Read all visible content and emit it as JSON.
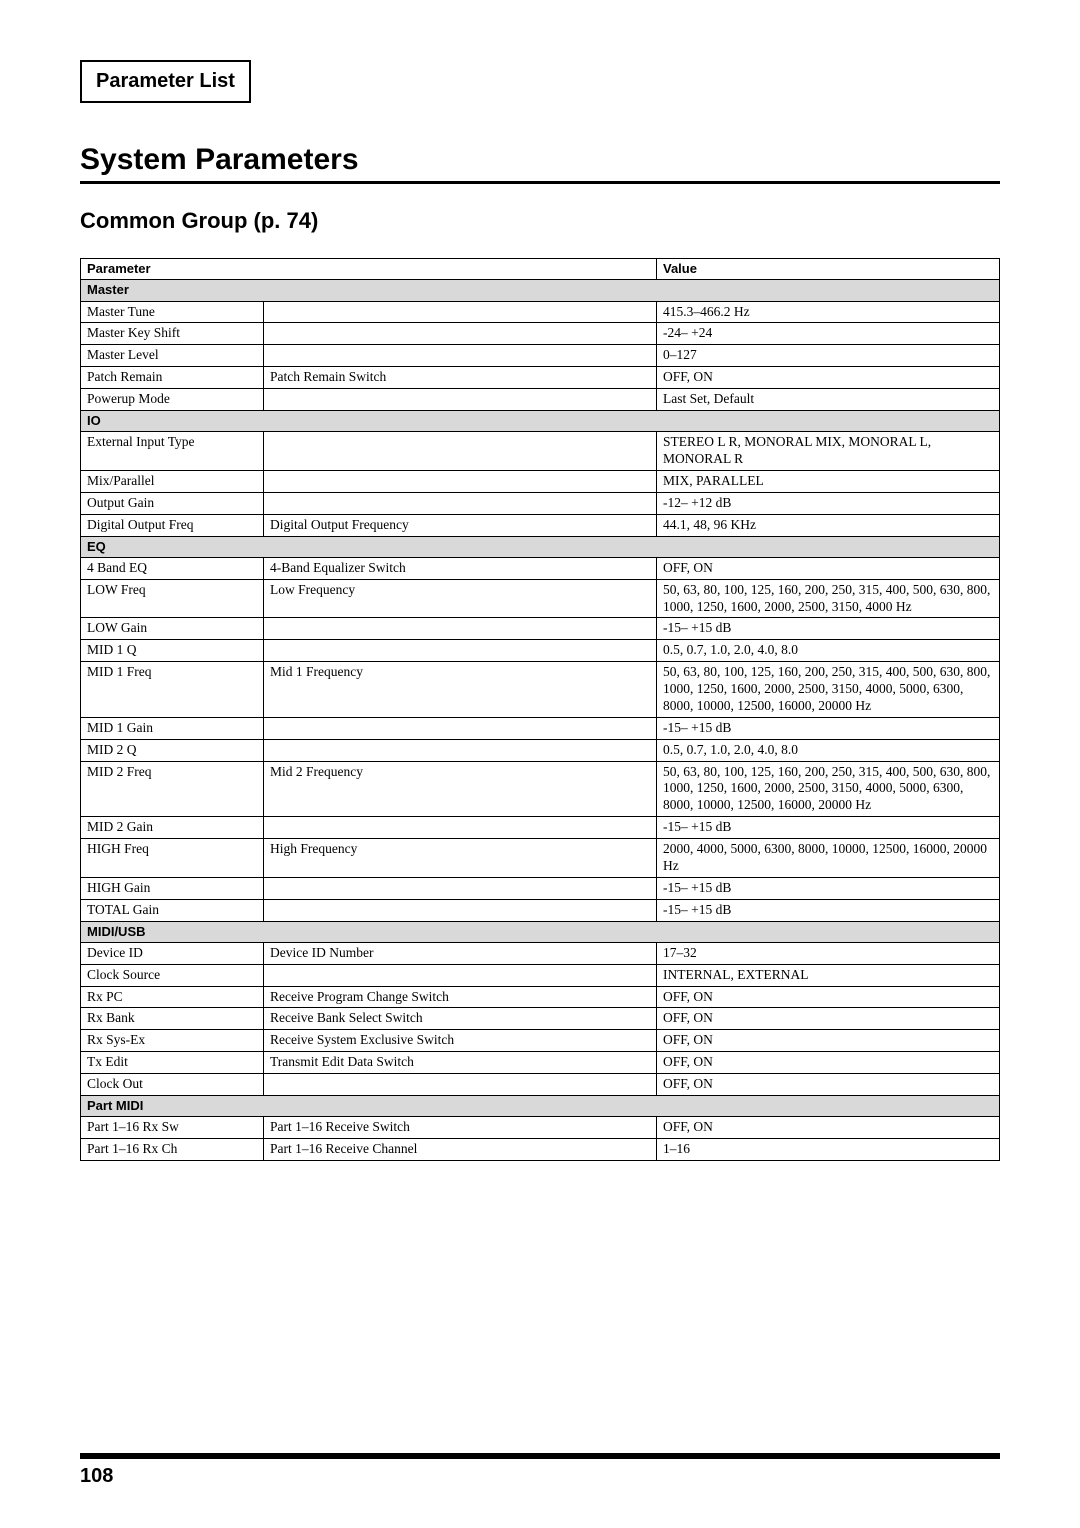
{
  "page": {
    "header_box_title": "Parameter List",
    "section_title": "System Parameters",
    "subsection_title": "Common Group (p. 74)",
    "page_number": "108"
  },
  "table": {
    "header": {
      "param": "Parameter",
      "value": "Value"
    },
    "groups": [
      {
        "name": "Master",
        "rows": [
          {
            "p1": "Master Tune",
            "p2": "",
            "v": "415.3–466.2 Hz"
          },
          {
            "p1": "Master Key Shift",
            "p2": "",
            "v": "-24– +24"
          },
          {
            "p1": "Master Level",
            "p2": "",
            "v": "0–127"
          },
          {
            "p1": "Patch Remain",
            "p2": "Patch Remain Switch",
            "v": "OFF, ON"
          },
          {
            "p1": "Powerup Mode",
            "p2": "",
            "v": "Last Set, Default"
          }
        ]
      },
      {
        "name": "IO",
        "rows": [
          {
            "p1": "External Input Type",
            "p2": "",
            "v": "STEREO L R, MONORAL MIX, MONORAL L, MONORAL R"
          },
          {
            "p1": "Mix/Parallel",
            "p2": "",
            "v": "MIX, PARALLEL"
          },
          {
            "p1": "Output Gain",
            "p2": "",
            "v": "-12– +12 dB"
          },
          {
            "p1": "Digital Output Freq",
            "p2": "Digital Output Frequency",
            "v": "44.1, 48, 96 KHz"
          }
        ]
      },
      {
        "name": "EQ",
        "rows": [
          {
            "p1": "4 Band EQ",
            "p2": "4-Band Equalizer Switch",
            "v": "OFF, ON"
          },
          {
            "p1": "LOW Freq",
            "p2": "Low Frequency",
            "v": "50, 63, 80, 100, 125, 160, 200, 250, 315, 400, 500, 630, 800, 1000, 1250, 1600, 2000, 2500, 3150, 4000 Hz"
          },
          {
            "p1": "LOW Gain",
            "p2": "",
            "v": "-15– +15 dB"
          },
          {
            "p1": "MID 1 Q",
            "p2": "",
            "v": "0.5, 0.7, 1.0, 2.0, 4.0, 8.0"
          },
          {
            "p1": "MID 1 Freq",
            "p2": "Mid 1 Frequency",
            "v": "50, 63, 80, 100, 125, 160, 200, 250, 315, 400, 500, 630, 800, 1000, 1250, 1600, 2000, 2500, 3150, 4000, 5000, 6300, 8000, 10000, 12500, 16000, 20000 Hz"
          },
          {
            "p1": "MID 1 Gain",
            "p2": "",
            "v": "-15– +15 dB"
          },
          {
            "p1": "MID 2 Q",
            "p2": "",
            "v": "0.5, 0.7, 1.0, 2.0, 4.0, 8.0"
          },
          {
            "p1": "MID 2 Freq",
            "p2": "Mid 2 Frequency",
            "v": "50, 63, 80, 100, 125, 160, 200, 250, 315, 400, 500, 630, 800, 1000, 1250, 1600, 2000, 2500, 3150, 4000, 5000, 6300, 8000, 10000, 12500, 16000, 20000 Hz"
          },
          {
            "p1": "MID 2 Gain",
            "p2": "",
            "v": "-15– +15 dB"
          },
          {
            "p1": "HIGH Freq",
            "p2": "High Frequency",
            "v": "2000, 4000, 5000, 6300, 8000, 10000, 12500, 16000, 20000 Hz"
          },
          {
            "p1": "HIGH Gain",
            "p2": "",
            "v": "-15– +15 dB"
          },
          {
            "p1": "TOTAL Gain",
            "p2": "",
            "v": "-15– +15 dB"
          }
        ]
      },
      {
        "name": "MIDI/USB",
        "rows": [
          {
            "p1": "Device ID",
            "p2": "Device ID Number",
            "v": "17–32"
          },
          {
            "p1": "Clock Source",
            "p2": "",
            "v": "INTERNAL, EXTERNAL"
          },
          {
            "p1": "Rx PC",
            "p2": "Receive Program Change Switch",
            "v": "OFF, ON"
          },
          {
            "p1": "Rx Bank",
            "p2": "Receive Bank Select Switch",
            "v": "OFF, ON"
          },
          {
            "p1": "Rx Sys-Ex",
            "p2": "Receive System Exclusive Switch",
            "v": "OFF, ON"
          },
          {
            "p1": "Tx Edit",
            "p2": "Transmit Edit Data Switch",
            "v": "OFF, ON"
          },
          {
            "p1": "Clock Out",
            "p2": "",
            "v": "OFF, ON"
          }
        ]
      },
      {
        "name": "Part MIDI",
        "rows": [
          {
            "p1": "Part 1–16 Rx Sw",
            "p2": "Part 1–16 Receive Switch",
            "v": "OFF, ON"
          },
          {
            "p1": "Part 1–16 Rx Ch",
            "p2": "Part 1–16 Receive Channel",
            "v": "1–16"
          }
        ]
      }
    ]
  }
}
